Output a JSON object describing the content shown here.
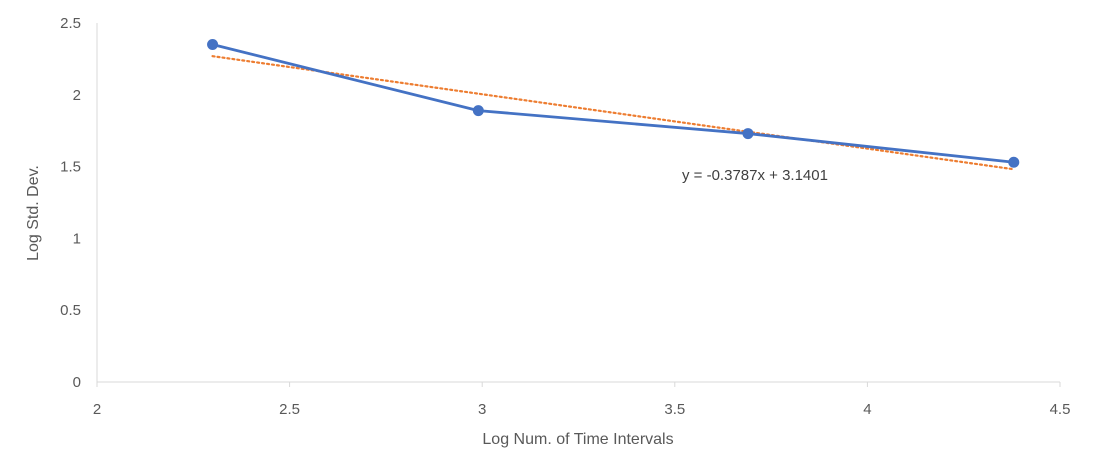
{
  "chart_data": {
    "type": "scatter",
    "xlabel": "Log Num. of Time Intervals",
    "ylabel": "Log Std. Dev.",
    "xlim": [
      2,
      4.5
    ],
    "ylim": [
      0,
      2.5
    ],
    "x_ticks": [
      "2",
      "2.5",
      "3",
      "3.5",
      "4",
      "4.5"
    ],
    "y_ticks": [
      "0",
      "0.5",
      "1",
      "1.5",
      "2",
      "2.5"
    ],
    "grid": false,
    "series": [
      {
        "x": [
          2.3,
          2.99,
          3.69,
          4.38
        ],
        "y": [
          2.35,
          1.89,
          1.73,
          1.53
        ],
        "color": "#4472C4",
        "style": "line-with-markers"
      }
    ],
    "trendline": {
      "type": "linear",
      "slope": -0.3787,
      "intercept": 3.1401,
      "x_range": [
        2.3,
        4.38
      ],
      "color": "#ED7D31",
      "style": "dotted",
      "equation_label": "y = -0.3787x + 3.1401"
    }
  }
}
